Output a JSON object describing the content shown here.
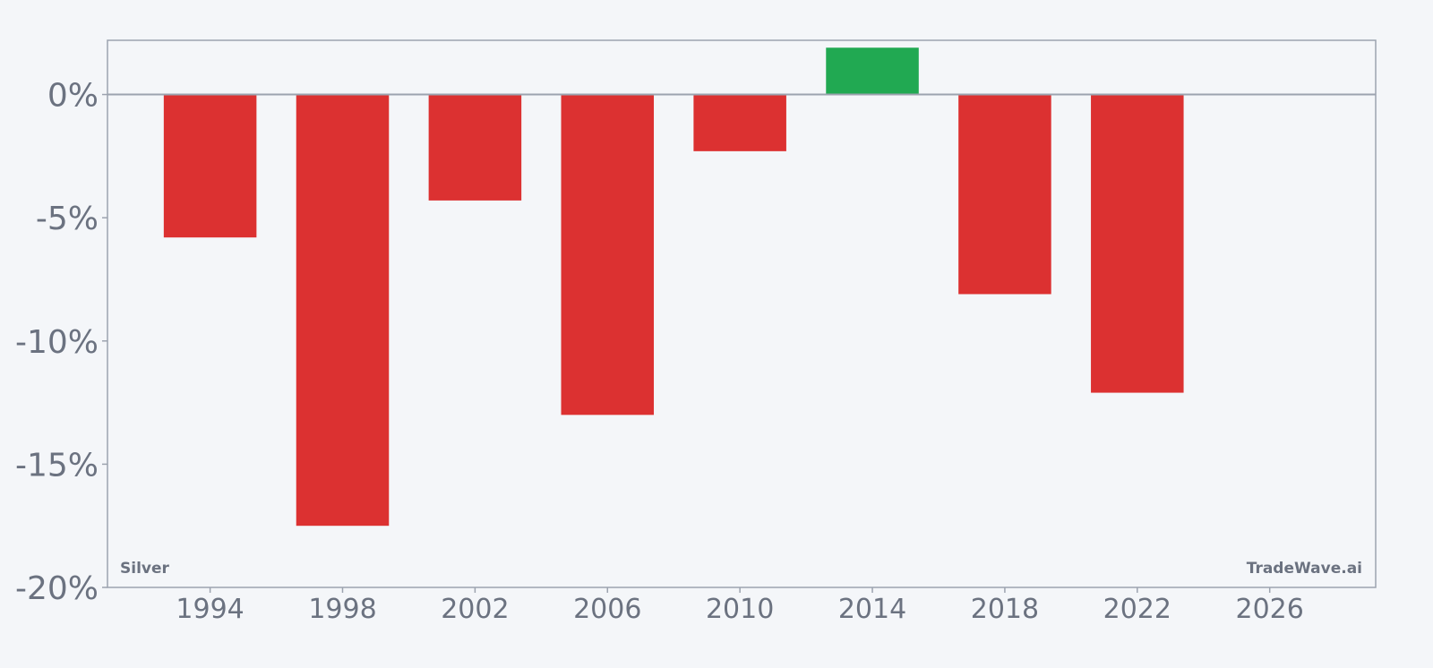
{
  "chart_data": {
    "type": "bar",
    "x": [
      1994,
      1998,
      2002,
      2006,
      2010,
      2014,
      2018,
      2022
    ],
    "values": [
      -5.8,
      -17.5,
      -4.3,
      -13.0,
      -2.3,
      1.9,
      -8.1,
      -12.1
    ],
    "ylim": [
      -20,
      2.2
    ],
    "xlim": [
      1990.9,
      2029.2
    ],
    "yticks": [
      0,
      -5,
      -10,
      -15,
      -20
    ],
    "ytick_labels": [
      "0%",
      "-5%",
      "-10%",
      "-15%",
      "-20%"
    ],
    "xticks": [
      1994,
      1998,
      2002,
      2006,
      2010,
      2014,
      2018,
      2022,
      2026
    ],
    "xtick_labels": [
      "1994",
      "1998",
      "2002",
      "2006",
      "2010",
      "2014",
      "2018",
      "2022",
      "2026"
    ],
    "bar_width_years": 2.8,
    "grid": false,
    "colors": {
      "negative": "#dc3131",
      "positive": "#21a952",
      "axis": "#9ca3af",
      "text": "#6b7280"
    }
  },
  "labels": {
    "asset": "Silver",
    "brand": "TradeWave.ai"
  }
}
